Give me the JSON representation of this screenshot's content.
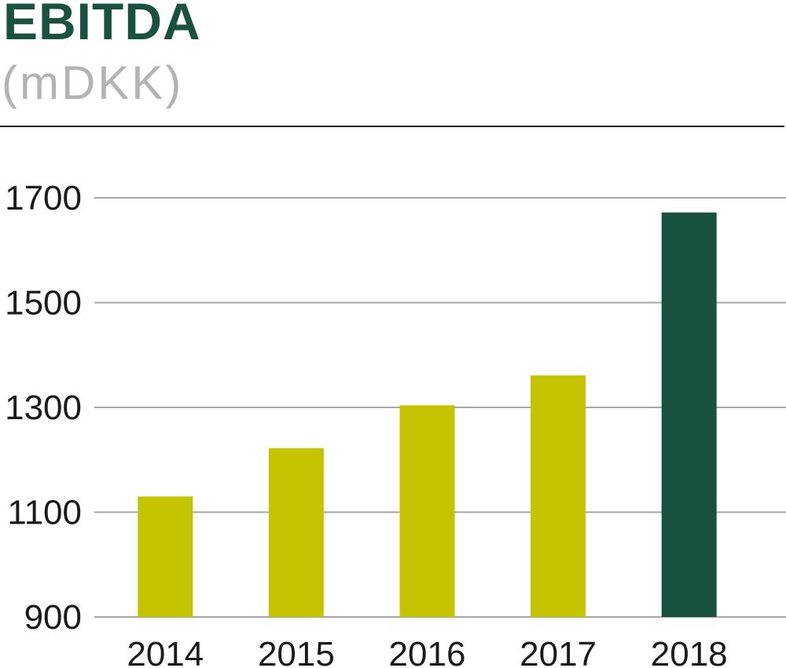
{
  "colors": {
    "title": "#1a5241",
    "subtitle": "#b3b3b3",
    "bar": "#c4c500",
    "highlight_bar": "#1a5241",
    "grid": "#a6a6a6",
    "tick_text": "#1a1a1a"
  },
  "chart_data": {
    "type": "bar",
    "title": "EBITDA",
    "subtitle": "(mDKK)",
    "xlabel": "",
    "ylabel": "",
    "categories": [
      "2014",
      "2015",
      "2016",
      "2017",
      "2018"
    ],
    "values": [
      1130,
      1222,
      1304,
      1361,
      1672
    ],
    "highlight_index": 4,
    "ylim": [
      900,
      1700
    ],
    "yticks": [
      900,
      1100,
      1300,
      1500,
      1700
    ],
    "grid": true,
    "legend": "none"
  }
}
